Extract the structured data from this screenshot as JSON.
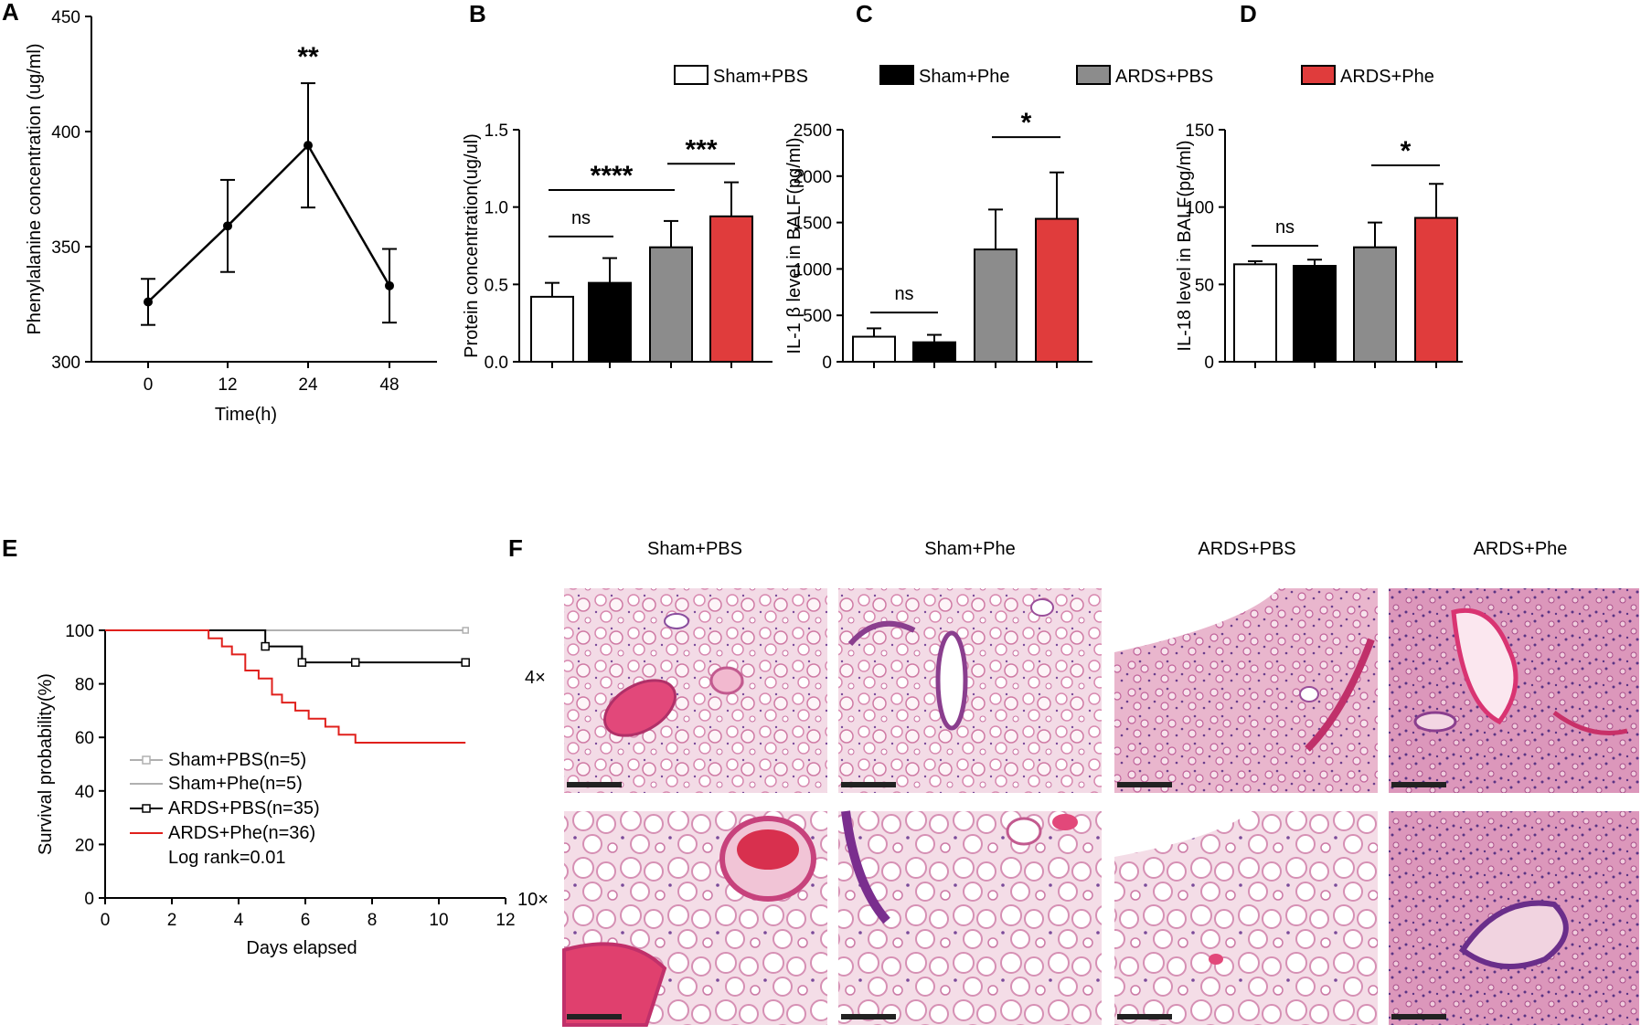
{
  "colors": {
    "sham_pbs": "#ffffff",
    "sham_phe": "#000000",
    "ards_pbs": "#8c8c8c",
    "ards_phe": "#e03c3c",
    "km_sham": "#b0b0b0",
    "km_ards_pbs": "#000000",
    "km_ards_phe": "#e0201c"
  },
  "bar_legend": [
    "Sham+PBS",
    "Sham+Phe",
    "ARDS+PBS",
    "ARDS+Phe"
  ],
  "chart_data": [
    {
      "id": "A",
      "type": "line",
      "letter": "A",
      "xlabel": "Time(h)",
      "ylabel": "Phenylalanine concentration (ug/ml)",
      "x": [
        0,
        12,
        24,
        48
      ],
      "x_tick_labels": [
        "0",
        "12",
        "24",
        "48"
      ],
      "y": [
        326,
        359,
        394,
        333
      ],
      "err": [
        10,
        20,
        27,
        16
      ],
      "ylim": [
        300,
        450
      ],
      "yticks": [
        300,
        350,
        400,
        450
      ],
      "annotations": [
        {
          "text": "**",
          "x": "24"
        }
      ]
    },
    {
      "id": "B",
      "type": "bar",
      "letter": "B",
      "ylabel": "Protein concentration(ug/ul)",
      "values": [
        0.42,
        0.51,
        0.74,
        0.94
      ],
      "err": [
        0.09,
        0.16,
        0.17,
        0.22
      ],
      "ylim": [
        0,
        1.5
      ],
      "yticks": [
        "0.0",
        "0.5",
        "1.0",
        "1.5"
      ],
      "comparisons": [
        {
          "from": 0,
          "to": 1,
          "label": "ns",
          "y": 0.81
        },
        {
          "from": 0,
          "to": 2,
          "label": "****",
          "y": 1.11
        },
        {
          "from": 2,
          "to": 3,
          "label": "***",
          "y": 1.28
        }
      ]
    },
    {
      "id": "C",
      "type": "bar",
      "letter": "C",
      "ylabel": "IL-1 β level in BALF(pg/ml)",
      "values": [
        270,
        210,
        1210,
        1540
      ],
      "err": [
        90,
        80,
        430,
        500
      ],
      "ylim": [
        0,
        2500
      ],
      "yticks": [
        "0",
        "500",
        "1000",
        "1500",
        "2000",
        "2500"
      ],
      "comparisons": [
        {
          "from": 0,
          "to": 1,
          "label": "ns",
          "y": 530
        },
        {
          "from": 2,
          "to": 3,
          "label": "*",
          "y": 2420
        }
      ]
    },
    {
      "id": "D",
      "type": "bar",
      "letter": "D",
      "ylabel": "IL-18 level in BALF(pg/ml)",
      "values": [
        63,
        62,
        74,
        93
      ],
      "err": [
        2,
        4,
        16,
        22
      ],
      "ylim": [
        0,
        150
      ],
      "yticks": [
        "0",
        "50",
        "100",
        "150"
      ],
      "comparisons": [
        {
          "from": 0,
          "to": 1,
          "label": "ns",
          "y": 75
        },
        {
          "from": 2,
          "to": 3,
          "label": "*",
          "y": 127
        }
      ]
    },
    {
      "id": "E",
      "type": "line",
      "letter": "E",
      "xlabel": "Days elapsed",
      "ylabel": "Survival probability(%)",
      "xlim": [
        0,
        12
      ],
      "xticks": [
        "0",
        "2",
        "4",
        "6",
        "8",
        "10",
        "12"
      ],
      "ylim": [
        0,
        100
      ],
      "yticks": [
        "0",
        "20",
        "40",
        "60",
        "80",
        "100"
      ],
      "series": [
        {
          "name": "Sham+PBS(n=5)",
          "x": [
            0,
            10.8
          ],
          "y": [
            100,
            100
          ]
        },
        {
          "name": "Sham+Phe(n=5)",
          "x": [
            0,
            10.8
          ],
          "y": [
            100,
            100
          ]
        },
        {
          "name": "ARDS+PBS(n=35)",
          "x": [
            0,
            4.8,
            4.8,
            5.9,
            5.9,
            10.8
          ],
          "y": [
            100,
            100,
            94,
            94,
            88,
            88
          ],
          "markers": [
            [
              4.8,
              94
            ],
            [
              5.9,
              88
            ],
            [
              7.5,
              88
            ],
            [
              10.8,
              88
            ]
          ]
        },
        {
          "name": "ARDS+Phe(n=36)",
          "x": [
            0,
            3.1,
            3.1,
            3.5,
            3.5,
            3.8,
            3.8,
            4.2,
            4.2,
            4.6,
            4.6,
            5.0,
            5.0,
            5.3,
            5.3,
            5.7,
            5.7,
            6.1,
            6.1,
            6.6,
            6.6,
            7.0,
            7.0,
            7.5,
            7.5,
            10.8
          ],
          "y": [
            100,
            100,
            97,
            97,
            94,
            94,
            91,
            91,
            85,
            85,
            82,
            82,
            76,
            76,
            73,
            73,
            70,
            70,
            67,
            67,
            64,
            64,
            61,
            61,
            58,
            58
          ]
        }
      ],
      "legend_note": "Log rank=0.01"
    }
  ],
  "histology": {
    "letter": "F",
    "columns": [
      "Sham+PBS",
      "Sham+Phe",
      "ARDS+PBS",
      "ARDS+Phe"
    ],
    "rows": [
      "4×",
      "10×"
    ]
  }
}
